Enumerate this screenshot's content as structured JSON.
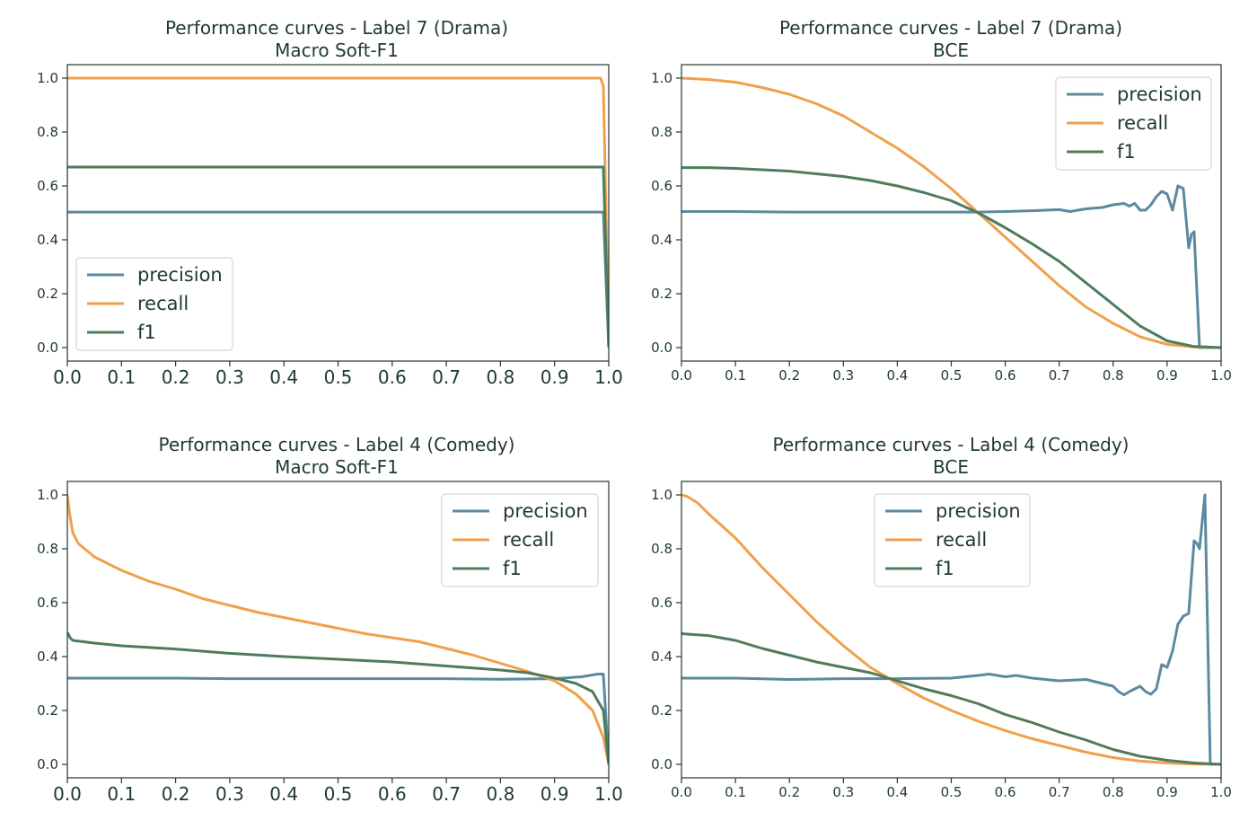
{
  "colors": {
    "precision": "#5b8aa0",
    "recall": "#f0a04b",
    "f1": "#4e7c5b",
    "axis": "#1f3a2b"
  },
  "chart_data": [
    {
      "type": "line",
      "title": "Performance curves - Label 7 (Drama)",
      "subtitle": "Macro Soft-F1",
      "xlabel": "",
      "ylabel": "",
      "xlim": [
        0.0,
        1.0
      ],
      "ylim": [
        0.0,
        1.0
      ],
      "xticks": [
        "0.0",
        "0.1",
        "0.2",
        "0.3",
        "0.4",
        "0.5",
        "0.6",
        "0.7",
        "0.8",
        "0.9",
        "1.0"
      ],
      "yticks": [
        "0.0",
        "0.2",
        "0.4",
        "0.6",
        "0.8",
        "1.0"
      ],
      "grid": false,
      "legend_position": "lower-left",
      "series": [
        {
          "name": "precision",
          "color_key": "precision",
          "x": [
            0.0,
            0.98,
            0.99,
            1.0
          ],
          "y": [
            0.503,
            0.503,
            0.503,
            0.0
          ]
        },
        {
          "name": "recall",
          "color_key": "recall",
          "x": [
            0.0,
            0.985,
            0.99,
            0.995,
            1.0
          ],
          "y": [
            1.0,
            1.0,
            0.97,
            0.5,
            0.0
          ]
        },
        {
          "name": "f1",
          "color_key": "f1",
          "x": [
            0.0,
            0.98,
            0.99,
            1.0
          ],
          "y": [
            0.67,
            0.67,
            0.67,
            0.0
          ]
        }
      ]
    },
    {
      "type": "line",
      "title": "Performance curves - Label 7 (Drama)",
      "subtitle": "BCE",
      "xlabel": "",
      "ylabel": "",
      "xlim": [
        0.0,
        1.0
      ],
      "ylim": [
        0.0,
        1.0
      ],
      "xticks": [
        "0.0",
        "0.1",
        "0.2",
        "0.3",
        "0.4",
        "0.5",
        "0.6",
        "0.7",
        "0.8",
        "0.9",
        "1.0"
      ],
      "yticks": [
        "0.0",
        "0.2",
        "0.4",
        "0.6",
        "0.8",
        "1.0"
      ],
      "grid": false,
      "legend_position": "upper-right",
      "series": [
        {
          "name": "precision",
          "color_key": "precision",
          "x": [
            0.0,
            0.1,
            0.2,
            0.3,
            0.4,
            0.5,
            0.55,
            0.6,
            0.65,
            0.7,
            0.72,
            0.75,
            0.78,
            0.8,
            0.82,
            0.83,
            0.84,
            0.85,
            0.86,
            0.87,
            0.88,
            0.89,
            0.9,
            0.91,
            0.92,
            0.93,
            0.94,
            0.945,
            0.95,
            0.96,
            0.97,
            1.0
          ],
          "y": [
            0.505,
            0.505,
            0.503,
            0.503,
            0.503,
            0.503,
            0.503,
            0.505,
            0.508,
            0.512,
            0.505,
            0.515,
            0.52,
            0.53,
            0.535,
            0.525,
            0.535,
            0.51,
            0.51,
            0.53,
            0.56,
            0.58,
            0.57,
            0.51,
            0.6,
            0.59,
            0.37,
            0.42,
            0.43,
            0.0,
            0.0,
            0.0
          ]
        },
        {
          "name": "recall",
          "color_key": "recall",
          "x": [
            0.0,
            0.05,
            0.1,
            0.15,
            0.2,
            0.25,
            0.3,
            0.35,
            0.4,
            0.45,
            0.5,
            0.55,
            0.6,
            0.65,
            0.7,
            0.75,
            0.8,
            0.85,
            0.9,
            0.95,
            1.0
          ],
          "y": [
            1.0,
            0.995,
            0.985,
            0.965,
            0.94,
            0.905,
            0.86,
            0.8,
            0.74,
            0.67,
            0.59,
            0.5,
            0.41,
            0.32,
            0.23,
            0.15,
            0.09,
            0.04,
            0.012,
            0.002,
            0.0
          ]
        },
        {
          "name": "f1",
          "color_key": "f1",
          "x": [
            0.0,
            0.05,
            0.1,
            0.15,
            0.2,
            0.25,
            0.3,
            0.35,
            0.4,
            0.45,
            0.5,
            0.55,
            0.6,
            0.65,
            0.7,
            0.75,
            0.8,
            0.85,
            0.9,
            0.95,
            1.0
          ],
          "y": [
            0.668,
            0.668,
            0.665,
            0.66,
            0.655,
            0.645,
            0.635,
            0.62,
            0.6,
            0.575,
            0.545,
            0.5,
            0.445,
            0.385,
            0.32,
            0.24,
            0.16,
            0.08,
            0.025,
            0.004,
            0.0
          ]
        }
      ]
    },
    {
      "type": "line",
      "title": "Performance curves - Label 4 (Comedy)",
      "subtitle": "Macro Soft-F1",
      "xlabel": "",
      "ylabel": "",
      "xlim": [
        0.0,
        1.0
      ],
      "ylim": [
        0.0,
        1.0
      ],
      "xticks": [
        "0.0",
        "0.1",
        "0.2",
        "0.3",
        "0.4",
        "0.5",
        "0.6",
        "0.7",
        "0.8",
        "0.9",
        "1.0"
      ],
      "yticks": [
        "0.0",
        "0.2",
        "0.4",
        "0.6",
        "0.8",
        "1.0"
      ],
      "grid": false,
      "legend_position": "upper-right",
      "series": [
        {
          "name": "precision",
          "color_key": "precision",
          "x": [
            0.0,
            0.1,
            0.2,
            0.3,
            0.4,
            0.5,
            0.6,
            0.7,
            0.8,
            0.9,
            0.95,
            0.98,
            0.99,
            1.0
          ],
          "y": [
            0.32,
            0.32,
            0.32,
            0.318,
            0.318,
            0.318,
            0.318,
            0.318,
            0.316,
            0.318,
            0.325,
            0.335,
            0.335,
            0.0
          ]
        },
        {
          "name": "recall",
          "color_key": "recall",
          "x": [
            0.0,
            0.005,
            0.01,
            0.02,
            0.05,
            0.1,
            0.15,
            0.2,
            0.25,
            0.3,
            0.35,
            0.4,
            0.45,
            0.5,
            0.55,
            0.6,
            0.65,
            0.7,
            0.75,
            0.8,
            0.85,
            0.9,
            0.94,
            0.97,
            0.99,
            1.0
          ],
          "y": [
            1.0,
            0.92,
            0.86,
            0.82,
            0.77,
            0.72,
            0.68,
            0.65,
            0.615,
            0.59,
            0.565,
            0.545,
            0.525,
            0.505,
            0.485,
            0.47,
            0.455,
            0.43,
            0.405,
            0.375,
            0.345,
            0.31,
            0.26,
            0.2,
            0.1,
            0.0
          ]
        },
        {
          "name": "f1",
          "color_key": "f1",
          "x": [
            0.0,
            0.005,
            0.01,
            0.05,
            0.1,
            0.2,
            0.3,
            0.4,
            0.5,
            0.6,
            0.7,
            0.8,
            0.85,
            0.9,
            0.94,
            0.97,
            0.99,
            1.0
          ],
          "y": [
            0.49,
            0.47,
            0.46,
            0.45,
            0.44,
            0.428,
            0.412,
            0.4,
            0.39,
            0.38,
            0.365,
            0.35,
            0.34,
            0.32,
            0.3,
            0.27,
            0.2,
            0.0
          ]
        }
      ]
    },
    {
      "type": "line",
      "title": "Performance curves - Label 4 (Comedy)",
      "subtitle": "BCE",
      "xlabel": "",
      "ylabel": "",
      "xlim": [
        0.0,
        1.0
      ],
      "ylim": [
        0.0,
        1.0
      ],
      "xticks": [
        "0.0",
        "0.1",
        "0.2",
        "0.3",
        "0.4",
        "0.5",
        "0.6",
        "0.7",
        "0.8",
        "0.9",
        "1.0"
      ],
      "yticks": [
        "0.0",
        "0.2",
        "0.4",
        "0.6",
        "0.8",
        "1.0"
      ],
      "grid": false,
      "legend_position": "upper-center",
      "series": [
        {
          "name": "precision",
          "color_key": "precision",
          "x": [
            0.0,
            0.05,
            0.1,
            0.2,
            0.3,
            0.4,
            0.5,
            0.55,
            0.57,
            0.6,
            0.62,
            0.65,
            0.7,
            0.75,
            0.78,
            0.8,
            0.81,
            0.82,
            0.83,
            0.84,
            0.85,
            0.86,
            0.87,
            0.88,
            0.89,
            0.9,
            0.91,
            0.92,
            0.93,
            0.94,
            0.95,
            0.955,
            0.96,
            0.965,
            0.97,
            0.975,
            0.98,
            1.0
          ],
          "y": [
            0.32,
            0.32,
            0.32,
            0.315,
            0.318,
            0.318,
            0.32,
            0.33,
            0.335,
            0.325,
            0.33,
            0.32,
            0.31,
            0.315,
            0.3,
            0.29,
            0.27,
            0.258,
            0.27,
            0.28,
            0.29,
            0.27,
            0.26,
            0.28,
            0.37,
            0.36,
            0.42,
            0.52,
            0.55,
            0.56,
            0.83,
            0.82,
            0.8,
            0.9,
            1.0,
            0.5,
            0.0,
            0.0
          ]
        },
        {
          "name": "recall",
          "color_key": "recall",
          "x": [
            0.0,
            0.01,
            0.03,
            0.05,
            0.1,
            0.15,
            0.2,
            0.25,
            0.3,
            0.35,
            0.4,
            0.45,
            0.5,
            0.55,
            0.6,
            0.65,
            0.7,
            0.75,
            0.8,
            0.85,
            0.9,
            0.95,
            1.0
          ],
          "y": [
            1.0,
            0.995,
            0.97,
            0.93,
            0.84,
            0.73,
            0.63,
            0.53,
            0.44,
            0.36,
            0.3,
            0.245,
            0.2,
            0.16,
            0.125,
            0.095,
            0.07,
            0.045,
            0.025,
            0.012,
            0.005,
            0.001,
            0.0
          ]
        },
        {
          "name": "f1",
          "color_key": "f1",
          "x": [
            0.0,
            0.05,
            0.1,
            0.15,
            0.2,
            0.25,
            0.3,
            0.35,
            0.4,
            0.45,
            0.5,
            0.55,
            0.6,
            0.65,
            0.7,
            0.75,
            0.8,
            0.85,
            0.9,
            0.95,
            1.0
          ],
          "y": [
            0.485,
            0.478,
            0.46,
            0.43,
            0.405,
            0.38,
            0.36,
            0.34,
            0.31,
            0.28,
            0.255,
            0.225,
            0.185,
            0.155,
            0.12,
            0.09,
            0.055,
            0.03,
            0.015,
            0.005,
            0.0
          ]
        }
      ]
    }
  ]
}
